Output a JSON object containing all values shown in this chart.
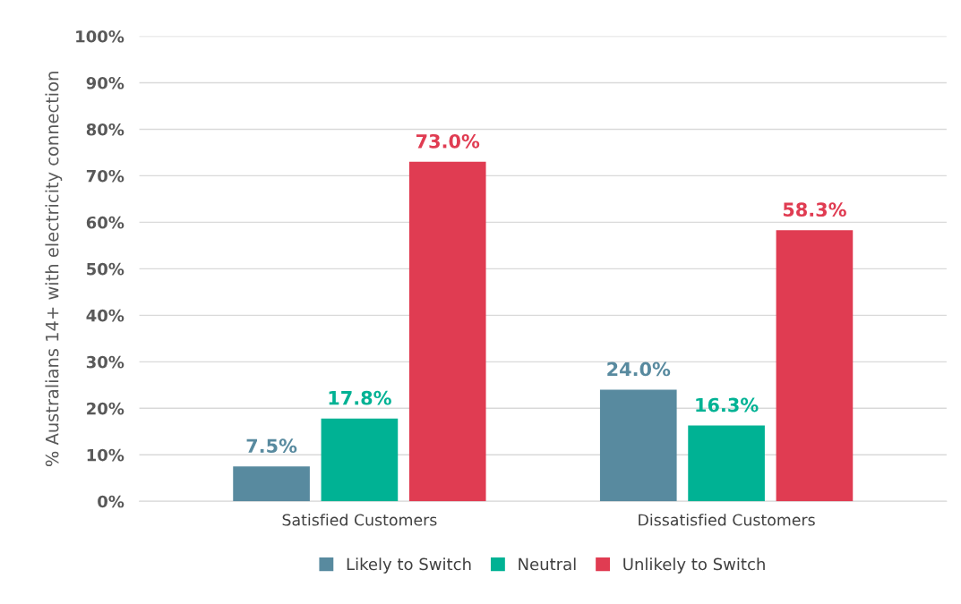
{
  "chart_data": {
    "type": "bar",
    "categories": [
      "Satisfied Customers",
      "Dissatisfied Customers"
    ],
    "series": [
      {
        "name": "Likely to Switch",
        "color": "#588a9f",
        "values": [
          7.5,
          24.0
        ],
        "value_labels": [
          "7.5%",
          "24.0%"
        ]
      },
      {
        "name": "Neutral",
        "color": "#00b294",
        "values": [
          17.8,
          16.3
        ],
        "value_labels": [
          "17.8%",
          "16.3%"
        ]
      },
      {
        "name": "Unlikely to Switch",
        "color": "#e03c52",
        "values": [
          73.0,
          58.3
        ],
        "value_labels": [
          "73.0%",
          "58.3%"
        ]
      }
    ],
    "ylabel": "% Australians 14+ with electricity connection",
    "ylim": [
      0,
      100
    ],
    "yticks": [
      {
        "value": 0,
        "label": "0%"
      },
      {
        "value": 10,
        "label": "10%"
      },
      {
        "value": 20,
        "label": "20%"
      },
      {
        "value": 30,
        "label": "30%"
      },
      {
        "value": 40,
        "label": "40%"
      },
      {
        "value": 50,
        "label": "50%"
      },
      {
        "value": 60,
        "label": "60%"
      },
      {
        "value": 70,
        "label": "70%"
      },
      {
        "value": 80,
        "label": "80%"
      },
      {
        "value": 90,
        "label": "90%"
      },
      {
        "value": 100,
        "label": "100%"
      }
    ],
    "grid": "y",
    "legend": "bottom"
  }
}
